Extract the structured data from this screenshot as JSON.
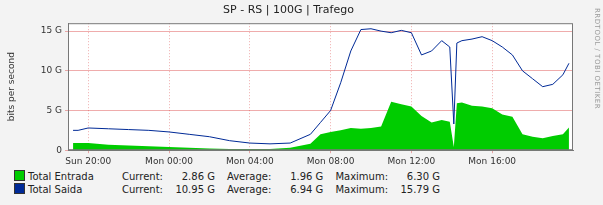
{
  "chart_data": {
    "type": "line",
    "title": "SP - RS | 100G | Trafego",
    "y_label": "bits per second",
    "annotations": [
      "RRDTOOL / TOBI OETIKER"
    ],
    "x": [
      19.25,
      19.5,
      20,
      21,
      22,
      23,
      24,
      25,
      26,
      27,
      28,
      29,
      30,
      31,
      31.5,
      32,
      32.5,
      33,
      33.5,
      34,
      34.5,
      35,
      35.5,
      36,
      36.5,
      37,
      37.5,
      37.9,
      38.1,
      38.25,
      38.5,
      39,
      39.5,
      40,
      40.5,
      41,
      41.5,
      42,
      42.5,
      43,
      43.5,
      43.8
    ],
    "series": [
      {
        "name": "Total Entrada",
        "color": "#00cc00",
        "type": "area",
        "values": [
          0.9,
          0.9,
          0.9,
          0.7,
          0.6,
          0.5,
          0.4,
          0.3,
          0.2,
          0.15,
          0.15,
          0.15,
          0.3,
          0.8,
          2.0,
          2.3,
          2.5,
          2.8,
          2.7,
          2.8,
          3.0,
          6.1,
          5.8,
          5.5,
          4.3,
          3.5,
          3.8,
          3.6,
          0.4,
          5.9,
          6.0,
          5.6,
          5.5,
          5.3,
          4.5,
          4.2,
          2.0,
          1.7,
          1.5,
          1.8,
          2.0,
          2.86
        ],
        "stats": [
          "2.86 G",
          "1.96 G",
          "6.30 G"
        ]
      },
      {
        "name": "Total Saida",
        "color": "#002a97",
        "type": "line",
        "values": [
          2.5,
          2.5,
          2.8,
          2.7,
          2.6,
          2.5,
          2.3,
          2.0,
          1.7,
          1.2,
          0.9,
          0.8,
          0.9,
          2.0,
          3.5,
          5.0,
          8.5,
          12.5,
          15.2,
          15.3,
          15.0,
          14.8,
          15.1,
          14.8,
          12.0,
          12.5,
          13.8,
          13.0,
          3.3,
          13.5,
          13.8,
          14.0,
          14.3,
          13.8,
          13.0,
          12.0,
          10.0,
          9.0,
          8.0,
          8.3,
          9.5,
          10.95
        ],
        "stats": [
          "10.95 G",
          "6.94 G",
          "15.79 G"
        ]
      }
    ],
    "stat_labels": [
      "Current:",
      "Average:",
      "Maximum:"
    ],
    "xlim": [
      19,
      44
    ],
    "xticks": [
      {
        "value": 20,
        "label": "Sun 20:00"
      },
      {
        "value": 24,
        "label": "Mon 00:00"
      },
      {
        "value": 28,
        "label": "Mon 04:00"
      },
      {
        "value": 32,
        "label": "Mon 08:00"
      },
      {
        "value": 36,
        "label": "Mon 12:00"
      },
      {
        "value": 40,
        "label": "Mon 16:00"
      }
    ],
    "ylim": [
      0,
      16
    ],
    "yticks": [
      0,
      {
        "value": 5,
        "label": "5 G"
      },
      {
        "value": 10,
        "label": "10 G"
      },
      {
        "value": 15,
        "label": "15 G"
      }
    ],
    "grid": true,
    "legend": "bottom"
  }
}
